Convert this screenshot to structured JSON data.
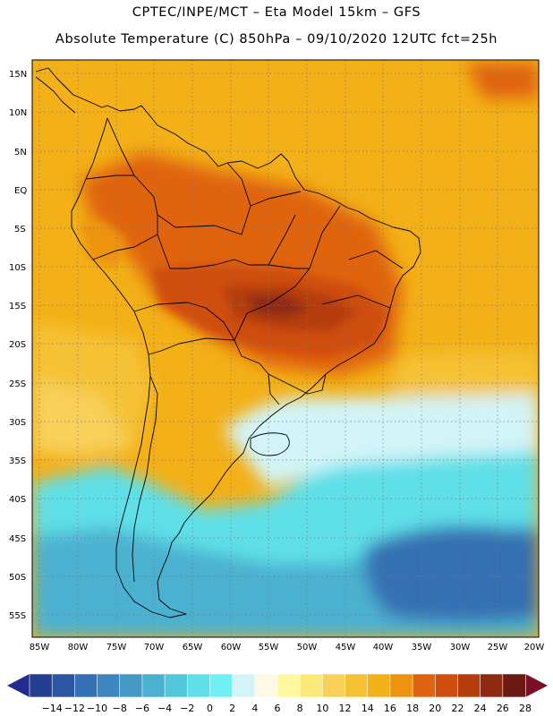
{
  "header": {
    "line1": "CPTEC/INPE/MCT –  Eta Model 15km – GFS",
    "line2": "Absolute Temperature (C) 850hPa – 09/10/2020 12UTC fct=25h"
  },
  "map": {
    "latitude_labels": [
      "15N",
      "10N",
      "5N",
      "EQ",
      "5S",
      "10S",
      "15S",
      "20S",
      "25S",
      "30S",
      "35S",
      "40S",
      "45S",
      "50S",
      "55S"
    ],
    "longitude_labels": [
      "85W",
      "80W",
      "75W",
      "70W",
      "65W",
      "60W",
      "55W",
      "50W",
      "45W",
      "40W",
      "35W",
      "30W",
      "25W",
      "20W"
    ],
    "grid": "dotted"
  },
  "colorbar": {
    "labels": [
      "-14",
      "-12",
      "-10",
      "-8",
      "-6",
      "-4",
      "-2",
      "0",
      "2",
      "4",
      "6",
      "8",
      "10",
      "12",
      "14",
      "16",
      "18",
      "20",
      "22",
      "24",
      "26",
      "28"
    ],
    "colors": [
      "#243f8f",
      "#2c56a3",
      "#3570b4",
      "#3d86c0",
      "#4499c6",
      "#4cb1d0",
      "#50c8da",
      "#5fdfe8",
      "#70f0f2",
      "#d2f4f8",
      "#fff8e4",
      "#fff89e",
      "#fde87a",
      "#f8d05a",
      "#f5c235",
      "#f3b017",
      "#ed9310",
      "#e06410",
      "#cf4d0e",
      "#b53d0e",
      "#8e2a12",
      "#6e1a14"
    ],
    "overflow_low_color": "#232c8c",
    "overflow_high_color": "#7a0f28"
  }
}
